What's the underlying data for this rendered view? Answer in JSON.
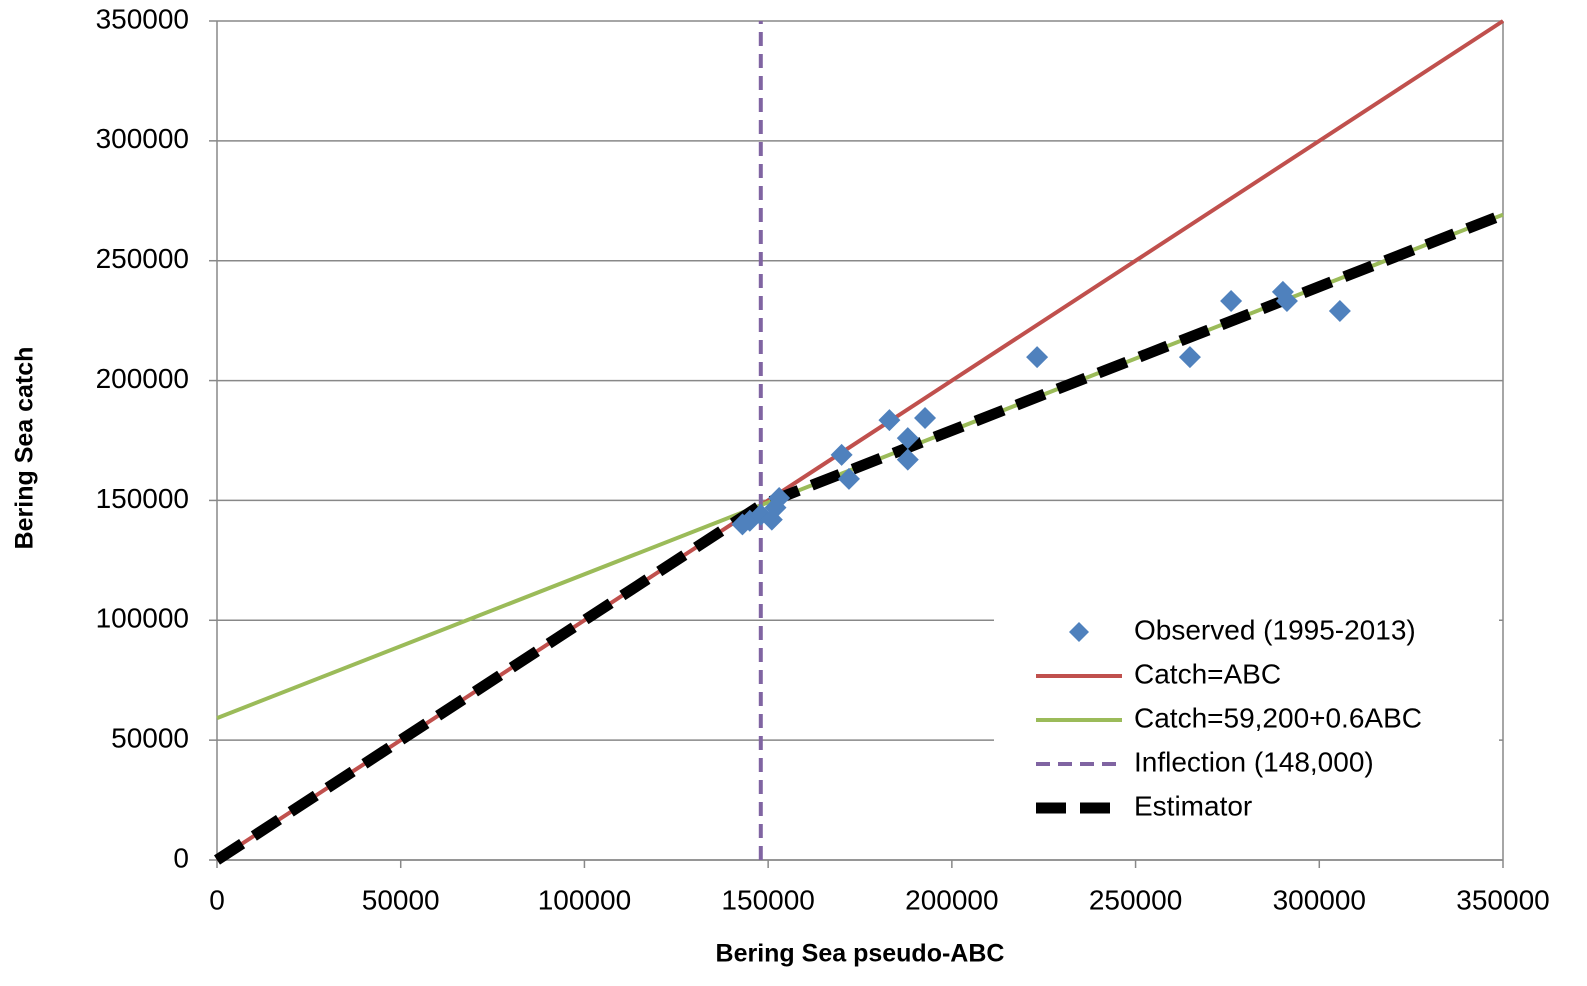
{
  "chart_data": {
    "type": "line",
    "x_label": "Bering Sea pseudo-ABC",
    "y_label": "Bering Sea catch",
    "xlim": [
      0,
      350000
    ],
    "xticks": [
      0,
      50000,
      100000,
      150000,
      200000,
      250000,
      300000,
      350000
    ],
    "ylim": [
      0,
      350000
    ],
    "yticks": [
      0,
      50000,
      100000,
      150000,
      200000,
      250000,
      300000,
      350000
    ],
    "grid": true,
    "legend": "lower right",
    "series": [
      {
        "name": "Catch=ABC",
        "kind": "line",
        "color": "#c0504d",
        "dash": "solid",
        "x": [
          0,
          350000
        ],
        "values": [
          0,
          350000
        ]
      },
      {
        "name": "Catch=59,200+0.6ABC",
        "kind": "line",
        "color": "#9bbb59",
        "dash": "solid",
        "x": [
          0,
          350000
        ],
        "values": [
          59200,
          269200
        ]
      },
      {
        "name": "Inflection (148,000)",
        "kind": "line",
        "color": "#8064a2",
        "dash": "dashed",
        "x": [
          148000,
          148000
        ],
        "values": [
          0,
          350000
        ]
      },
      {
        "name": "Estimator",
        "kind": "line",
        "color": "#000000",
        "dash": "thick-dashed",
        "x": [
          0,
          148000,
          350000
        ],
        "values": [
          0,
          148000,
          269200
        ]
      },
      {
        "name": "Observed (1995-2013)",
        "kind": "scatter",
        "color": "#4f81bd",
        "dash": "none",
        "x": [
          143000,
          145000,
          148000,
          151000,
          152000,
          153000,
          170000,
          172000,
          183000,
          188000,
          188000,
          192700,
          223200,
          264800,
          276000,
          290100,
          291200,
          305600
        ],
        "values": [
          140000,
          141500,
          144000,
          142000,
          147000,
          151000,
          169000,
          159000,
          183500,
          176000,
          167000,
          184400,
          209800,
          209800,
          233200,
          237000,
          233200,
          229000
        ]
      }
    ]
  }
}
